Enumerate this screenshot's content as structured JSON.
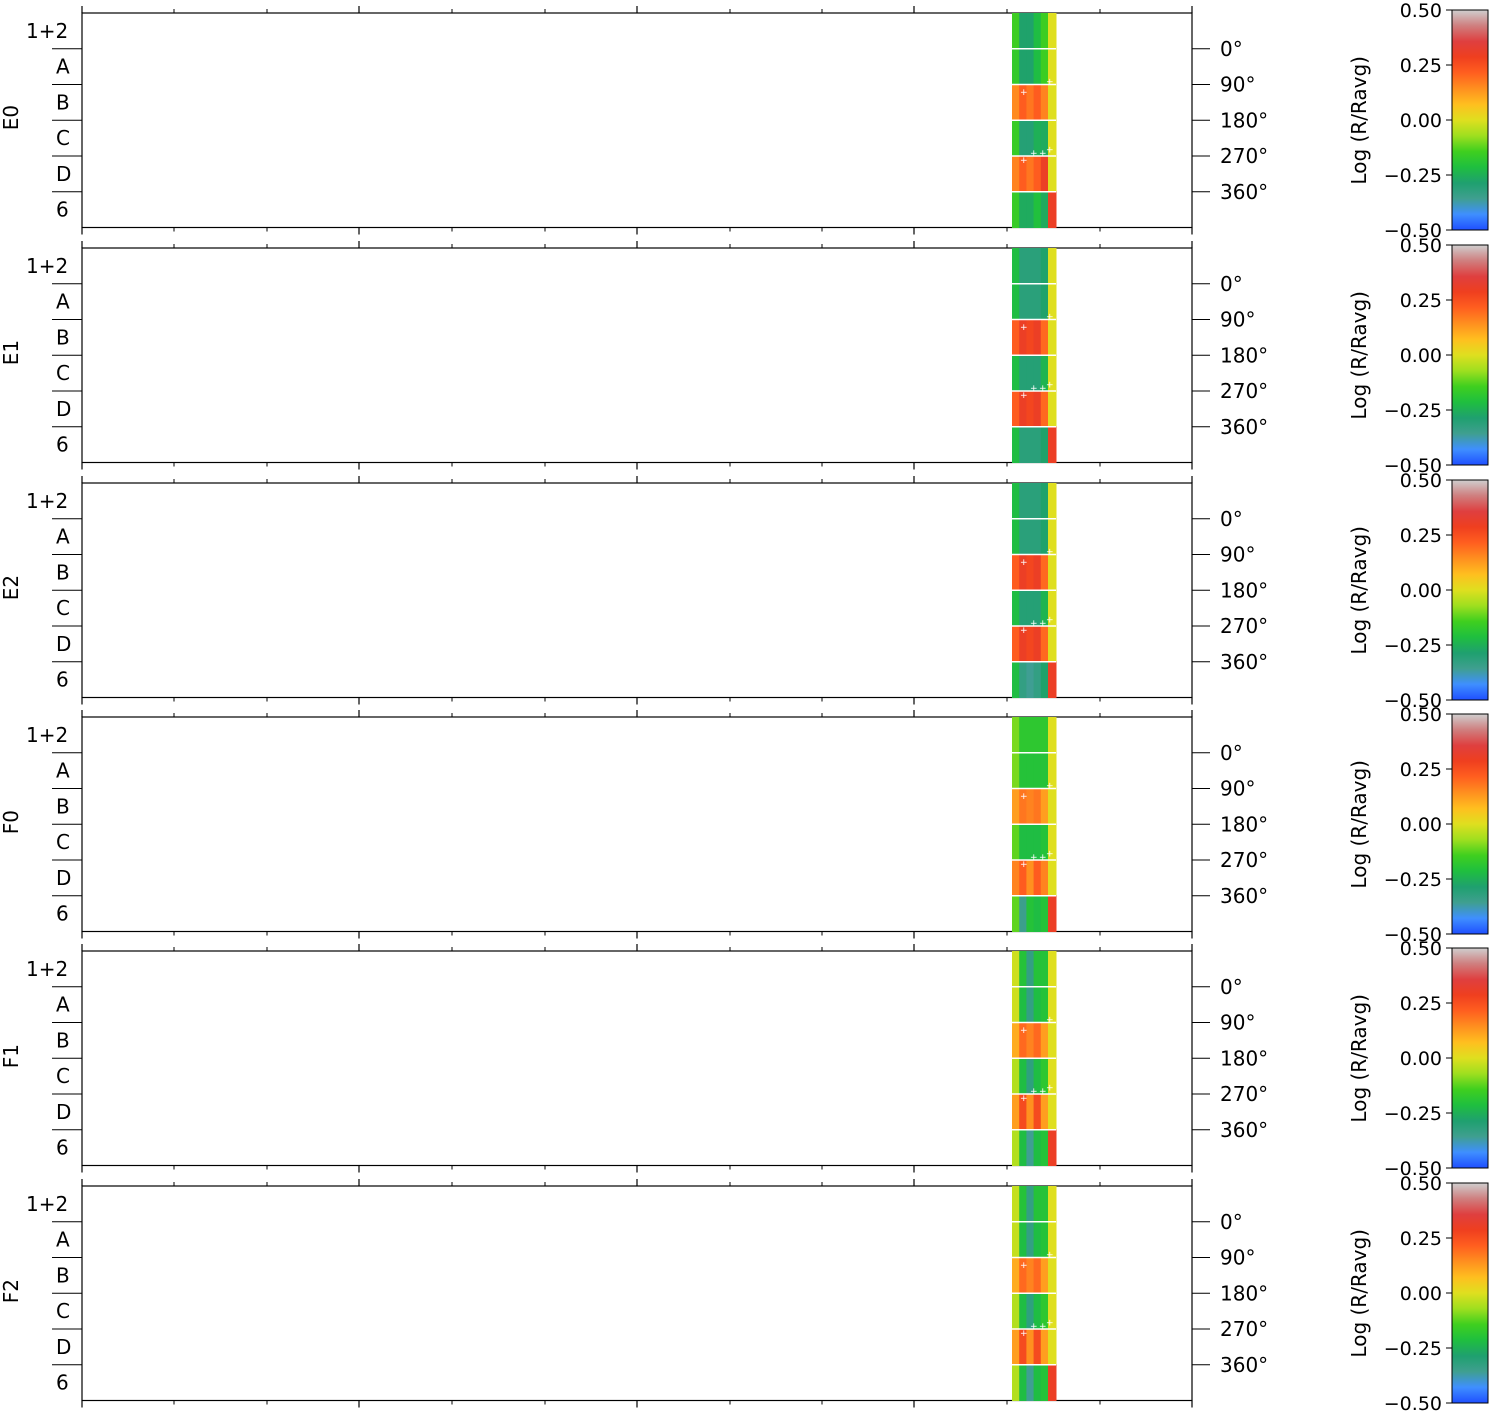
{
  "chart_data": {
    "type": "heatmap",
    "colorbar": {
      "label": "Log (R/Ravg)",
      "ticks": [
        "0.50",
        "0.25",
        "0.00",
        "−0.25",
        "−0.50"
      ],
      "range": [
        -0.5,
        0.5
      ],
      "stops": [
        "#1f4fff",
        "#3f8fff",
        "#3f9f8f",
        "#1fa06f",
        "#1fbf3f",
        "#3fcf1f",
        "#9fdf1f",
        "#dfdf1f",
        "#ffbf1f",
        "#ff8f1f",
        "#ff5f1f",
        "#ef3f1f",
        "#df3f3f",
        "#cf7f7f",
        "#cfcfcf"
      ]
    },
    "row_labels": [
      "1+2",
      "A",
      "B",
      "C",
      "D",
      "6"
    ],
    "phase_labels": [
      "0°",
      "90°",
      "180°",
      "270°",
      "360°"
    ],
    "panels": [
      {
        "name": "E0",
        "values": [
          [
            -0.15,
            -0.28,
            -0.28,
            -0.22,
            -0.15,
            0.0
          ],
          [
            -0.17,
            -0.28,
            -0.28,
            -0.22,
            -0.15,
            0.0
          ],
          [
            0.15,
            0.22,
            0.18,
            0.22,
            0.16,
            0.0
          ],
          [
            -0.16,
            -0.3,
            -0.3,
            -0.25,
            -0.26,
            0.0
          ],
          [
            0.16,
            0.22,
            0.18,
            0.22,
            0.3,
            0.0
          ],
          [
            -0.16,
            -0.26,
            -0.26,
            -0.21,
            -0.26,
            0.3
          ]
        ]
      },
      {
        "name": "E1",
        "values": [
          [
            -0.22,
            -0.31,
            -0.31,
            -0.31,
            -0.28,
            0.0
          ],
          [
            -0.22,
            -0.31,
            -0.31,
            -0.31,
            -0.28,
            0.0
          ],
          [
            0.22,
            0.3,
            0.27,
            0.3,
            0.2,
            0.0
          ],
          [
            -0.22,
            -0.3,
            -0.3,
            -0.3,
            -0.24,
            0.0
          ],
          [
            0.22,
            0.3,
            0.27,
            0.3,
            0.2,
            0.0
          ],
          [
            -0.22,
            -0.31,
            -0.31,
            -0.31,
            -0.28,
            0.3
          ]
        ]
      },
      {
        "name": "E2",
        "values": [
          [
            -0.22,
            -0.31,
            -0.31,
            -0.31,
            -0.28,
            0.0
          ],
          [
            -0.22,
            -0.31,
            -0.31,
            -0.31,
            -0.28,
            0.0
          ],
          [
            0.22,
            0.3,
            0.27,
            0.3,
            0.2,
            0.0
          ],
          [
            -0.22,
            -0.3,
            -0.3,
            -0.3,
            -0.24,
            0.0
          ],
          [
            0.22,
            0.3,
            0.27,
            0.3,
            0.2,
            0.0
          ],
          [
            -0.22,
            -0.33,
            -0.36,
            -0.33,
            -0.28,
            0.3
          ]
        ]
      },
      {
        "name": "F0",
        "values": [
          [
            -0.1,
            -0.18,
            -0.18,
            -0.18,
            -0.18,
            0.0
          ],
          [
            -0.1,
            -0.2,
            -0.2,
            -0.2,
            -0.2,
            0.0
          ],
          [
            0.12,
            0.18,
            0.16,
            0.18,
            0.12,
            0.0
          ],
          [
            -0.12,
            -0.22,
            -0.22,
            -0.22,
            -0.2,
            0.0
          ],
          [
            0.16,
            0.22,
            0.14,
            0.22,
            0.16,
            0.0
          ],
          [
            -0.12,
            -0.35,
            -0.2,
            -0.22,
            -0.2,
            0.3
          ]
        ]
      },
      {
        "name": "F1",
        "values": [
          [
            -0.02,
            -0.2,
            -0.33,
            -0.2,
            -0.2,
            0.0
          ],
          [
            -0.02,
            -0.22,
            -0.33,
            -0.22,
            -0.2,
            0.0
          ],
          [
            0.1,
            0.2,
            0.16,
            0.2,
            0.12,
            0.0
          ],
          [
            -0.05,
            -0.22,
            -0.32,
            -0.22,
            -0.18,
            0.0
          ],
          [
            0.12,
            0.26,
            0.14,
            0.26,
            0.12,
            0.0
          ],
          [
            -0.05,
            -0.22,
            -0.36,
            -0.22,
            -0.2,
            0.3
          ]
        ]
      },
      {
        "name": "F2",
        "values": [
          [
            -0.03,
            -0.2,
            -0.33,
            -0.2,
            -0.2,
            0.0
          ],
          [
            -0.03,
            -0.22,
            -0.33,
            -0.22,
            -0.2,
            0.0
          ],
          [
            0.1,
            0.2,
            0.16,
            0.2,
            0.12,
            0.0
          ],
          [
            -0.05,
            -0.22,
            -0.32,
            -0.22,
            -0.18,
            0.0
          ],
          [
            0.12,
            0.26,
            0.14,
            0.26,
            0.12,
            0.0
          ],
          [
            -0.05,
            -0.22,
            -0.36,
            -0.22,
            -0.2,
            0.3
          ]
        ]
      }
    ]
  }
}
